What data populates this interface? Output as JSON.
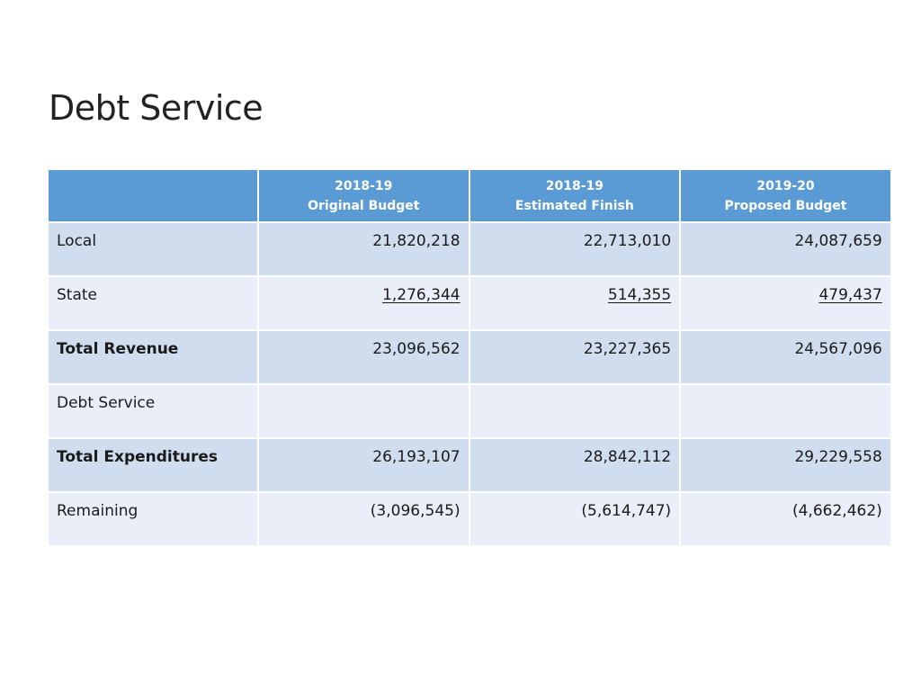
{
  "slide": {
    "title": "Debt Service"
  },
  "table": {
    "header": [
      {
        "line1": "",
        "line2": ""
      },
      {
        "line1": "2018-19",
        "line2": "Original Budget"
      },
      {
        "line1": "2018-19",
        "line2": "Estimated Finish"
      },
      {
        "line1": "2019-20",
        "line2": "Proposed Budget"
      }
    ],
    "rows": [
      {
        "label": "Local",
        "values": [
          "21,820,218",
          "22,713,010",
          "24,087,659"
        ]
      },
      {
        "label": "State",
        "values": [
          "1,276,344",
          "514,355",
          "479,437"
        ]
      },
      {
        "label": "Total Revenue",
        "values": [
          "23,096,562",
          "23,227,365",
          "24,567,096"
        ]
      },
      {
        "label": "Debt Service",
        "values": [
          "",
          "",
          ""
        ]
      },
      {
        "label": "Total Expenditures",
        "values": [
          "26,193,107",
          "28,842,112",
          "29,229,558"
        ]
      },
      {
        "label": "Remaining",
        "values": [
          "(3,096,545)",
          "(5,614,747)",
          "(4,662,462)"
        ]
      }
    ]
  }
}
